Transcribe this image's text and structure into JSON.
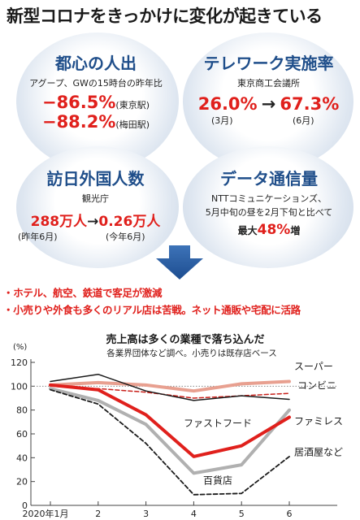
{
  "title": "新型コロナをきっかけに変化が起きている",
  "cards": {
    "tokyo": {
      "heading": "都心の人出",
      "sub": "アグープ、GWの15時台の昨年比",
      "rows": [
        {
          "value": "−86.5%",
          "place": "(東京駅)"
        },
        {
          "value": "−88.2%",
          "place": "(梅田駅)"
        }
      ]
    },
    "telework": {
      "heading": "テレワーク実施率",
      "sub": "東京商工会議所",
      "from_value": "26.0%",
      "from_label": "(3月)",
      "arrow": "→",
      "to_value": "67.3%",
      "to_label": "(6月)"
    },
    "inbound": {
      "heading": "訪日外国人数",
      "sub": "観光庁",
      "from_value": "288万人",
      "from_label": "(昨年6月)",
      "arrow": "→",
      "to_value": "0.26万人",
      "to_label": "(今年6月)"
    },
    "data": {
      "heading": "データ通信量",
      "sub1": "NTTコミュニケーションズ、",
      "sub2": "5月中旬の昼を2月下旬と比べて",
      "prefix": "最大",
      "value": "48%",
      "suffix": "増"
    }
  },
  "bullets": [
    "・ホテル、航空、鉄道で客足が激減",
    "・小売りや外食も多くのリアル店は苦戦。ネット通販や宅配に活路"
  ],
  "colors": {
    "accent_blue": "#1f4e8a",
    "accent_red": "#e0201c",
    "supermarket": "#e8a090",
    "convenience": "#c8201a",
    "fastfood": "#1a1a1a",
    "famires": "#e0201c",
    "department": "#b0b0b0",
    "izakaya": "#1a1a1a"
  },
  "chart_data": {
    "type": "line",
    "title": "売上高は多くの業種で落ち込んだ",
    "subtitle": "各業界団体など調べ。小売りは既存店ベース",
    "ylabel": "(%)",
    "ylim": [
      0,
      120
    ],
    "yticks": [
      0,
      20,
      40,
      60,
      80,
      100,
      120
    ],
    "x": [
      1,
      2,
      3,
      4,
      5,
      6
    ],
    "xtick_labels": [
      "2020年1月",
      "2",
      "3",
      "4",
      "5",
      "6"
    ],
    "reference_line": 100,
    "series": [
      {
        "name": "スーパー",
        "values": [
          101,
          103,
          101,
          96,
          102,
          104
        ],
        "style": "solid-thick-light"
      },
      {
        "name": "コンビニ",
        "values": [
          100,
          98,
          95,
          90,
          92,
          94
        ],
        "style": "dashed"
      },
      {
        "name": "ファストフード",
        "values": [
          104,
          110,
          96,
          88,
          92,
          89
        ],
        "style": "solid"
      },
      {
        "name": "ファミレス",
        "values": [
          101,
          97,
          76,
          41,
          50,
          74
        ],
        "style": "solid-thick"
      },
      {
        "name": "百貨店",
        "values": [
          98,
          88,
          68,
          27,
          34,
          80
        ],
        "style": "solid-thick-gray"
      },
      {
        "name": "居酒屋など",
        "values": [
          97,
          85,
          52,
          9,
          10,
          41
        ],
        "style": "dashed-black"
      }
    ]
  }
}
